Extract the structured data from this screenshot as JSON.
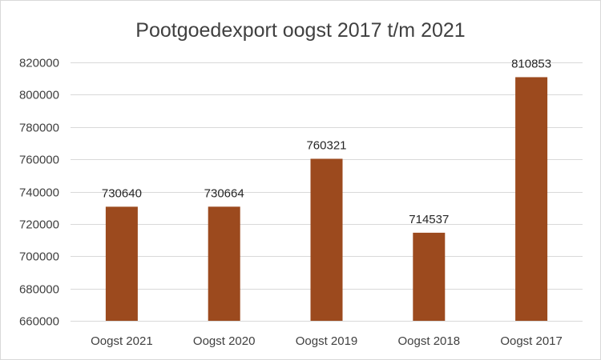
{
  "chart_data": {
    "type": "bar",
    "title": "Pootgoedexport oogst 2017 t/m 2021",
    "categories": [
      "Oogst 2021",
      "Oogst 2020",
      "Oogst 2019",
      "Oogst 2018",
      "Oogst 2017"
    ],
    "values": [
      730640,
      730664,
      760321,
      714537,
      810853
    ],
    "data_labels": [
      "730640",
      "730664",
      "760321",
      "714537",
      "810853"
    ],
    "ylim": [
      660000,
      820000
    ],
    "yticks": [
      660000,
      680000,
      700000,
      720000,
      740000,
      760000,
      780000,
      800000,
      820000
    ],
    "ytick_labels": [
      "660000",
      "680000",
      "700000",
      "720000",
      "740000",
      "760000",
      "780000",
      "800000",
      "820000"
    ],
    "grid": true,
    "legend": "none",
    "bar_color": "#9c4a1e"
  }
}
